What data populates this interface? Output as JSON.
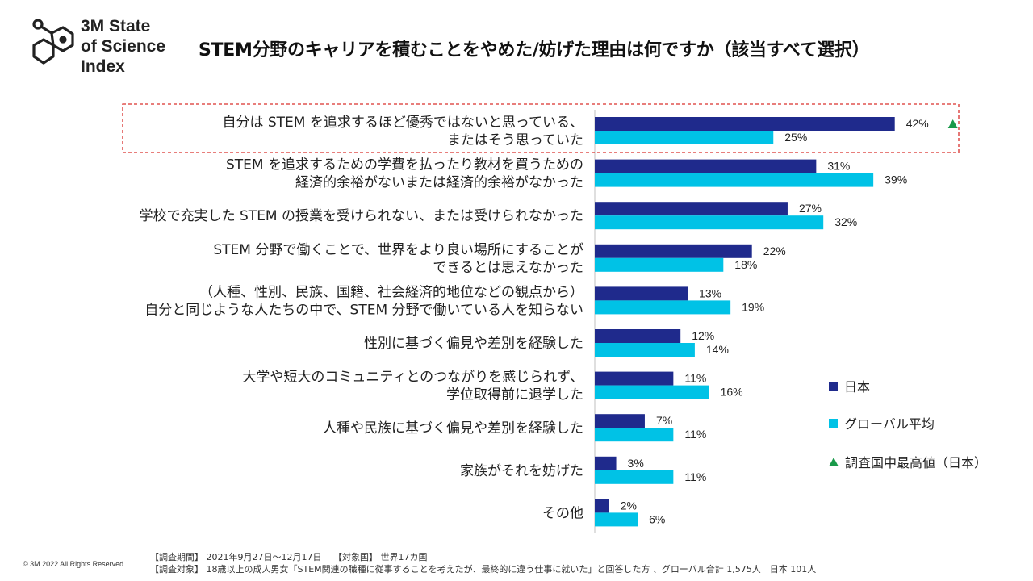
{
  "logo": {
    "line1": "3M State",
    "line2": "of Science",
    "line3": "Index"
  },
  "title": "STEM分野のキャリアを積むことをやめた/妨げた理由は何ですか（該当すべて選択）",
  "colors": {
    "japan": "#1f2a8c",
    "global": "#00c2e6",
    "highlight_box": "#d9302c",
    "triangle": "#1a9a4a",
    "axis": "#bfbfbf"
  },
  "chart_data": {
    "type": "bar",
    "orientation": "horizontal",
    "categories": [
      [
        "自分は STEM を追求するほど優秀ではないと思っている、",
        "またはそう思っていた"
      ],
      [
        "STEM を追求するための学費を払ったり教材を買うための",
        "経済的余裕がないまたは経済的余裕がなかった"
      ],
      [
        "学校で充実した STEM の授業を受けられない、または受けられなかった"
      ],
      [
        "STEM 分野で働くことで、世界をより良い場所にすることが",
        "できるとは思えなかった"
      ],
      [
        "（人種、性別、民族、国籍、社会経済的地位などの観点から）",
        "自分と同じような人たちの中で、STEM 分野で働いている人を知らない"
      ],
      [
        "性別に基づく偏見や差別を経験した"
      ],
      [
        "大学や短大のコミュニティとのつながりを感じられず、",
        "学位取得前に退学した"
      ],
      [
        "人種や民族に基づく偏見や差別を経験した"
      ],
      [
        "家族がそれを妨げた"
      ],
      [
        "その他"
      ]
    ],
    "series": [
      {
        "name": "日本",
        "values": [
          42,
          31,
          27,
          22,
          13,
          12,
          11,
          7,
          3,
          2
        ]
      },
      {
        "name": "グローバル平均",
        "values": [
          25,
          39,
          32,
          18,
          19,
          14,
          16,
          11,
          11,
          6
        ]
      }
    ],
    "value_suffix": "%",
    "xlim": [
      0,
      100
    ],
    "highest_marker": {
      "category_index": 0,
      "series": "日本",
      "symbol": "▲"
    },
    "highlighted_category_index": 0
  },
  "legend": {
    "japan": "日本",
    "global": "グローバル平均",
    "highest": "調査国中最高値（日本）"
  },
  "footer": {
    "copyright": "© 3M  2022    All Rights Reserved.",
    "period": "【調査期間】 2021年9月27日～12月17日　 【対象国】 世界17カ国",
    "target": "【調査対象】 18歳以上の成人男女「STEM関連の職種に従事することを考えたが、最終的に違う仕事に就いた」と回答した方 、グローバル合計  1,575人　日本 101人"
  }
}
